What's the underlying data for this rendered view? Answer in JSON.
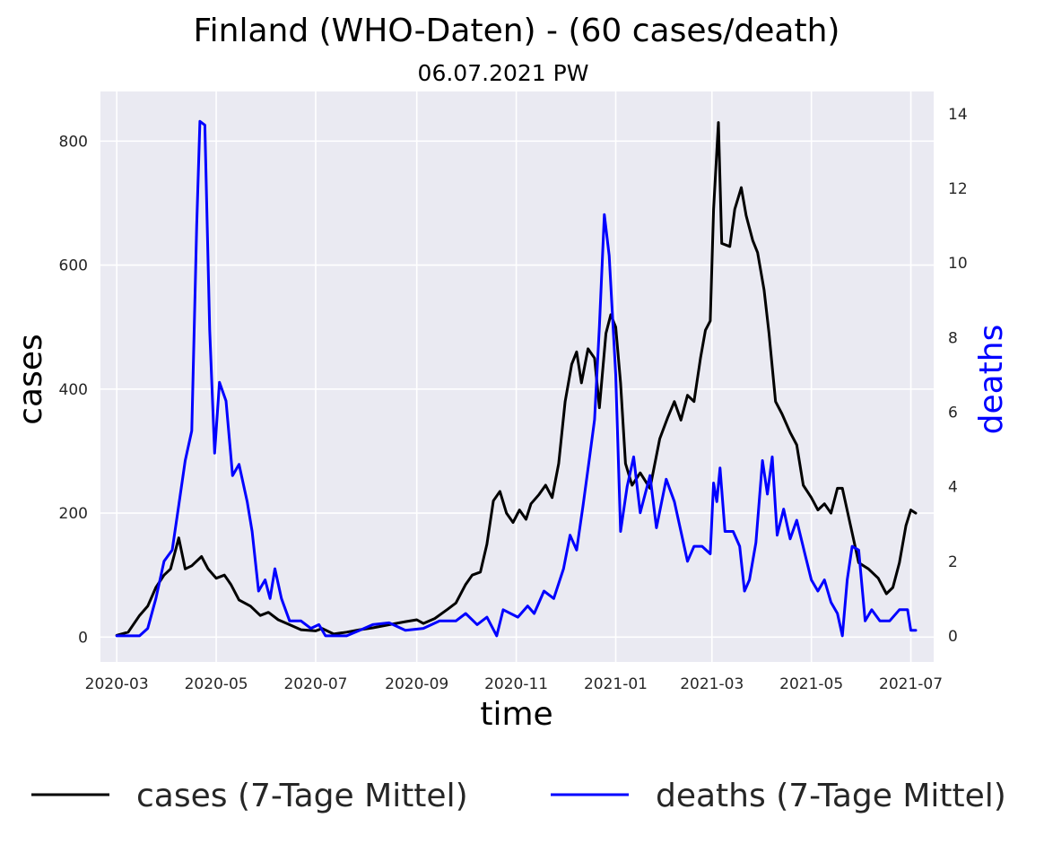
{
  "chart_data": {
    "type": "line",
    "title": "Finland (WHO-Daten) - (60 cases/death)",
    "subtitle": "06.07.2021 PW",
    "xlabel": "time",
    "ylabel": "cases",
    "y2label": "deaths",
    "x_ticks": [
      "2020-03",
      "2020-05",
      "2020-07",
      "2020-09",
      "2020-11",
      "2021-01",
      "2021-03",
      "2021-05",
      "2021-07"
    ],
    "y_ticks": [
      "0",
      "200",
      "400",
      "600",
      "800"
    ],
    "y2_ticks": [
      "0",
      "2",
      "4",
      "6",
      "8",
      "10",
      "12",
      "14"
    ],
    "xlim": [
      "2020-02-20",
      "2021-07-15"
    ],
    "ylim": [
      -40,
      880
    ],
    "y2lim": [
      -0.7,
      14.6
    ],
    "grid": true,
    "legend": "bottom-center",
    "colors": {
      "cases": "#000000",
      "deaths": "#0000ff",
      "axes_bg": "#eaeaf2",
      "grid": "#ffffff"
    },
    "series": [
      {
        "name": "cases (7-Tage Mittel)",
        "axis": "left",
        "color": "#000000",
        "points": [
          [
            "2020-03-01",
            3
          ],
          [
            "2020-03-08",
            8
          ],
          [
            "2020-03-15",
            35
          ],
          [
            "2020-03-20",
            50
          ],
          [
            "2020-03-25",
            80
          ],
          [
            "2020-03-30",
            100
          ],
          [
            "2020-04-03",
            110
          ],
          [
            "2020-04-08",
            160
          ],
          [
            "2020-04-12",
            110
          ],
          [
            "2020-04-16",
            115
          ],
          [
            "2020-04-22",
            130
          ],
          [
            "2020-04-26",
            110
          ],
          [
            "2020-05-01",
            95
          ],
          [
            "2020-05-06",
            100
          ],
          [
            "2020-05-10",
            85
          ],
          [
            "2020-05-15",
            60
          ],
          [
            "2020-05-22",
            50
          ],
          [
            "2020-05-28",
            35
          ],
          [
            "2020-06-02",
            40
          ],
          [
            "2020-06-08",
            28
          ],
          [
            "2020-06-15",
            20
          ],
          [
            "2020-06-22",
            12
          ],
          [
            "2020-07-01",
            10
          ],
          [
            "2020-07-05",
            14
          ],
          [
            "2020-07-12",
            5
          ],
          [
            "2020-07-20",
            8
          ],
          [
            "2020-07-28",
            12
          ],
          [
            "2020-08-05",
            15
          ],
          [
            "2020-08-15",
            20
          ],
          [
            "2020-08-25",
            25
          ],
          [
            "2020-09-01",
            28
          ],
          [
            "2020-09-05",
            22
          ],
          [
            "2020-09-12",
            30
          ],
          [
            "2020-09-20",
            45
          ],
          [
            "2020-09-25",
            55
          ],
          [
            "2020-10-01",
            85
          ],
          [
            "2020-10-05",
            100
          ],
          [
            "2020-10-10",
            105
          ],
          [
            "2020-10-14",
            150
          ],
          [
            "2020-10-18",
            220
          ],
          [
            "2020-10-22",
            235
          ],
          [
            "2020-10-26",
            200
          ],
          [
            "2020-10-30",
            185
          ],
          [
            "2020-11-03",
            205
          ],
          [
            "2020-11-07",
            190
          ],
          [
            "2020-11-10",
            215
          ],
          [
            "2020-11-15",
            230
          ],
          [
            "2020-11-19",
            245
          ],
          [
            "2020-11-23",
            225
          ],
          [
            "2020-11-27",
            280
          ],
          [
            "2020-12-01",
            380
          ],
          [
            "2020-12-05",
            440
          ],
          [
            "2020-12-08",
            460
          ],
          [
            "2020-12-11",
            410
          ],
          [
            "2020-12-15",
            465
          ],
          [
            "2020-12-19",
            450
          ],
          [
            "2020-12-22",
            370
          ],
          [
            "2020-12-26",
            490
          ],
          [
            "2020-12-29",
            520
          ],
          [
            "2021-01-01",
            500
          ],
          [
            "2021-01-04",
            410
          ],
          [
            "2021-01-07",
            280
          ],
          [
            "2021-01-11",
            245
          ],
          [
            "2021-01-16",
            265
          ],
          [
            "2021-01-22",
            240
          ],
          [
            "2021-01-28",
            320
          ],
          [
            "2021-02-02",
            355
          ],
          [
            "2021-02-06",
            380
          ],
          [
            "2021-02-10",
            350
          ],
          [
            "2021-02-14",
            390
          ],
          [
            "2021-02-18",
            380
          ],
          [
            "2021-02-22",
            450
          ],
          [
            "2021-02-25",
            495
          ],
          [
            "2021-02-28",
            510
          ],
          [
            "2021-03-02",
            690
          ],
          [
            "2021-03-05",
            830
          ],
          [
            "2021-03-07",
            635
          ],
          [
            "2021-03-12",
            630
          ],
          [
            "2021-03-15",
            690
          ],
          [
            "2021-03-19",
            725
          ],
          [
            "2021-03-22",
            680
          ],
          [
            "2021-03-26",
            640
          ],
          [
            "2021-03-29",
            620
          ],
          [
            "2021-04-02",
            560
          ],
          [
            "2021-04-05",
            490
          ],
          [
            "2021-04-09",
            380
          ],
          [
            "2021-04-13",
            360
          ],
          [
            "2021-04-18",
            330
          ],
          [
            "2021-04-22",
            310
          ],
          [
            "2021-04-26",
            245
          ],
          [
            "2021-05-01",
            225
          ],
          [
            "2021-05-05",
            205
          ],
          [
            "2021-05-09",
            215
          ],
          [
            "2021-05-13",
            200
          ],
          [
            "2021-05-17",
            240
          ],
          [
            "2021-05-20",
            240
          ],
          [
            "2021-05-25",
            180
          ],
          [
            "2021-05-30",
            120
          ],
          [
            "2021-06-05",
            110
          ],
          [
            "2021-06-11",
            95
          ],
          [
            "2021-06-16",
            70
          ],
          [
            "2021-06-20",
            80
          ],
          [
            "2021-06-24",
            120
          ],
          [
            "2021-06-28",
            180
          ],
          [
            "2021-07-01",
            205
          ],
          [
            "2021-07-04",
            200
          ]
        ]
      },
      {
        "name": "deaths (7-Tage Mittel)",
        "axis": "right",
        "color": "#0000ff",
        "points": [
          [
            "2020-03-01",
            0
          ],
          [
            "2020-03-15",
            0
          ],
          [
            "2020-03-20",
            0.2
          ],
          [
            "2020-03-25",
            1.0
          ],
          [
            "2020-03-30",
            2.0
          ],
          [
            "2020-04-04",
            2.3
          ],
          [
            "2020-04-08",
            3.5
          ],
          [
            "2020-04-12",
            4.7
          ],
          [
            "2020-04-16",
            5.5
          ],
          [
            "2020-04-19",
            11.0
          ],
          [
            "2020-04-21",
            13.8
          ],
          [
            "2020-04-24",
            13.7
          ],
          [
            "2020-04-27",
            8.2
          ],
          [
            "2020-04-30",
            4.9
          ],
          [
            "2020-05-03",
            6.8
          ],
          [
            "2020-05-07",
            6.3
          ],
          [
            "2020-05-11",
            4.3
          ],
          [
            "2020-05-15",
            4.6
          ],
          [
            "2020-05-20",
            3.6
          ],
          [
            "2020-05-23",
            2.8
          ],
          [
            "2020-05-27",
            1.2
          ],
          [
            "2020-05-31",
            1.5
          ],
          [
            "2020-06-03",
            1.0
          ],
          [
            "2020-06-06",
            1.8
          ],
          [
            "2020-06-10",
            1.0
          ],
          [
            "2020-06-15",
            0.4
          ],
          [
            "2020-06-22",
            0.4
          ],
          [
            "2020-06-28",
            0.2
          ],
          [
            "2020-07-03",
            0.3
          ],
          [
            "2020-07-07",
            0
          ],
          [
            "2020-07-20",
            0
          ],
          [
            "2020-07-28",
            0.15
          ],
          [
            "2020-08-05",
            0.3
          ],
          [
            "2020-08-15",
            0.35
          ],
          [
            "2020-08-25",
            0.15
          ],
          [
            "2020-09-05",
            0.2
          ],
          [
            "2020-09-15",
            0.4
          ],
          [
            "2020-09-25",
            0.4
          ],
          [
            "2020-10-01",
            0.6
          ],
          [
            "2020-10-08",
            0.3
          ],
          [
            "2020-10-14",
            0.5
          ],
          [
            "2020-10-20",
            0
          ],
          [
            "2020-10-24",
            0.7
          ],
          [
            "2020-11-02",
            0.5
          ],
          [
            "2020-11-08",
            0.8
          ],
          [
            "2020-11-12",
            0.6
          ],
          [
            "2020-11-18",
            1.2
          ],
          [
            "2020-11-24",
            1.0
          ],
          [
            "2020-11-30",
            1.8
          ],
          [
            "2020-12-04",
            2.7
          ],
          [
            "2020-12-08",
            2.3
          ],
          [
            "2020-12-12",
            3.5
          ],
          [
            "2020-12-16",
            4.8
          ],
          [
            "2020-12-19",
            5.8
          ],
          [
            "2020-12-22",
            8.3
          ],
          [
            "2020-12-25",
            11.3
          ],
          [
            "2020-12-28",
            10.2
          ],
          [
            "2021-01-01",
            7.0
          ],
          [
            "2021-01-04",
            2.8
          ],
          [
            "2021-01-08",
            4.0
          ],
          [
            "2021-01-12",
            4.8
          ],
          [
            "2021-01-16",
            3.3
          ],
          [
            "2021-01-22",
            4.3
          ],
          [
            "2021-01-26",
            2.9
          ],
          [
            "2021-02-01",
            4.2
          ],
          [
            "2021-02-06",
            3.6
          ],
          [
            "2021-02-10",
            2.8
          ],
          [
            "2021-02-14",
            2.0
          ],
          [
            "2021-02-18",
            2.4
          ],
          [
            "2021-02-23",
            2.4
          ],
          [
            "2021-02-28",
            2.2
          ],
          [
            "2021-03-02",
            4.1
          ],
          [
            "2021-03-04",
            3.6
          ],
          [
            "2021-03-06",
            4.5
          ],
          [
            "2021-03-09",
            2.8
          ],
          [
            "2021-03-14",
            2.8
          ],
          [
            "2021-03-18",
            2.4
          ],
          [
            "2021-03-21",
            1.2
          ],
          [
            "2021-03-24",
            1.5
          ],
          [
            "2021-03-28",
            2.5
          ],
          [
            "2021-04-01",
            4.7
          ],
          [
            "2021-04-04",
            3.8
          ],
          [
            "2021-04-07",
            4.8
          ],
          [
            "2021-04-10",
            2.7
          ],
          [
            "2021-04-14",
            3.4
          ],
          [
            "2021-04-18",
            2.6
          ],
          [
            "2021-04-22",
            3.1
          ],
          [
            "2021-04-27",
            2.2
          ],
          [
            "2021-05-01",
            1.5
          ],
          [
            "2021-05-05",
            1.2
          ],
          [
            "2021-05-09",
            1.5
          ],
          [
            "2021-05-13",
            0.9
          ],
          [
            "2021-05-17",
            0.6
          ],
          [
            "2021-05-20",
            0
          ],
          [
            "2021-05-23",
            1.5
          ],
          [
            "2021-05-26",
            2.4
          ],
          [
            "2021-05-30",
            2.3
          ],
          [
            "2021-06-03",
            0.4
          ],
          [
            "2021-06-07",
            0.7
          ],
          [
            "2021-06-12",
            0.4
          ],
          [
            "2021-06-18",
            0.4
          ],
          [
            "2021-06-24",
            0.7
          ],
          [
            "2021-06-29",
            0.7
          ],
          [
            "2021-07-01",
            0.15
          ],
          [
            "2021-07-04",
            0.15
          ]
        ]
      }
    ]
  }
}
